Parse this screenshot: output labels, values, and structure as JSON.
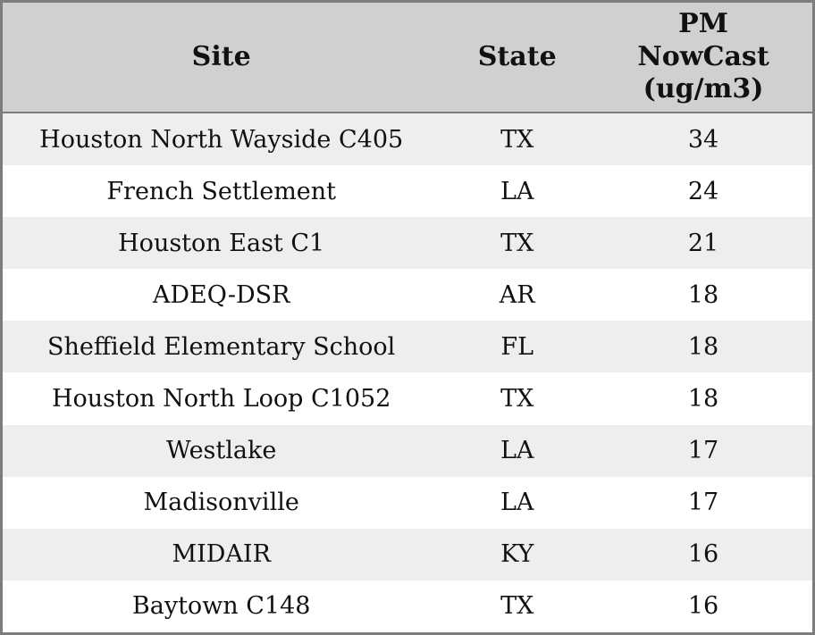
{
  "chart_data": {
    "type": "table",
    "title": "",
    "columns": [
      "Site",
      "State",
      "PM NowCast (ug/m3)"
    ],
    "rows": [
      [
        "Houston North Wayside C405",
        "TX",
        34
      ],
      [
        "French Settlement",
        "LA",
        24
      ],
      [
        "Houston East C1",
        "TX",
        21
      ],
      [
        "ADEQ-DSR",
        "AR",
        18
      ],
      [
        "Sheffield Elementary School",
        "FL",
        18
      ],
      [
        "Houston North Loop C1052",
        "TX",
        18
      ],
      [
        "Westlake",
        "LA",
        17
      ],
      [
        "Madisonville",
        "LA",
        17
      ],
      [
        "MIDAIR",
        "KY",
        16
      ],
      [
        "Baytown C148",
        "TX",
        16
      ]
    ],
    "layout": {
      "zebra_striping": true,
      "header_position": "top",
      "all_cells_centered": true
    }
  },
  "colors": {
    "header_bg": "#d0d0d0",
    "row_stripe": "#eeeeee",
    "row_plain": "#ffffff",
    "border": "#7d7d7d",
    "text": "#111111"
  }
}
